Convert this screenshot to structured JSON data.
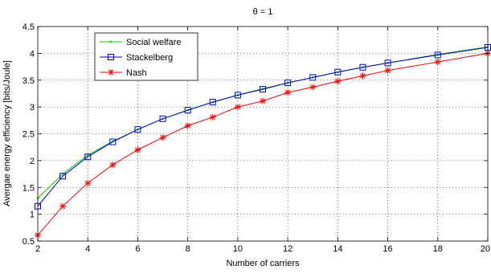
{
  "chart_data": {
    "type": "line",
    "title": "θ = 1",
    "xlabel": "Number of carriers",
    "ylabel": "Avergae energy efficiency [bits/Joule]",
    "xlim": [
      2,
      20
    ],
    "ylim": [
      0.5,
      4.5
    ],
    "xticks": [
      "2",
      "4",
      "6",
      "8",
      "10",
      "12",
      "14",
      "16",
      "18",
      "20"
    ],
    "yticks": [
      "0.5",
      "1",
      "1.5",
      "2",
      "2.5",
      "3",
      "3.5",
      "4",
      "4.5"
    ],
    "grid": true,
    "legend_position": "top-left",
    "series": [
      {
        "name": "Social welfare",
        "color": "#00cc00",
        "marker": "dot",
        "x": [
          2,
          3,
          4,
          5,
          6,
          7,
          8,
          9,
          10,
          11,
          12,
          13,
          14,
          15,
          16,
          18,
          20
        ],
        "values": [
          1.3,
          1.75,
          2.1,
          2.36,
          2.58,
          2.78,
          2.94,
          3.09,
          3.22,
          3.34,
          3.45,
          3.55,
          3.65,
          3.74,
          3.82,
          3.98,
          4.12
        ]
      },
      {
        "name": "Stackelberg",
        "color": "#0000cc",
        "marker": "square",
        "x": [
          2,
          3,
          4,
          5,
          6,
          7,
          8,
          9,
          10,
          11,
          12,
          13,
          14,
          15,
          16,
          18,
          20
        ],
        "values": [
          1.15,
          1.71,
          2.07,
          2.35,
          2.58,
          2.78,
          2.94,
          3.09,
          3.22,
          3.33,
          3.45,
          3.55,
          3.65,
          3.74,
          3.82,
          3.97,
          4.11
        ]
      },
      {
        "name": "Nash",
        "color": "#ff0000",
        "marker": "star",
        "x": [
          2,
          3,
          4,
          5,
          6,
          7,
          8,
          9,
          10,
          11,
          12,
          13,
          14,
          15,
          16,
          18,
          20
        ],
        "values": [
          0.61,
          1.15,
          1.58,
          1.92,
          2.2,
          2.43,
          2.65,
          2.81,
          3.0,
          3.11,
          3.27,
          3.37,
          3.48,
          3.58,
          3.68,
          3.84,
          4.0
        ]
      }
    ]
  }
}
